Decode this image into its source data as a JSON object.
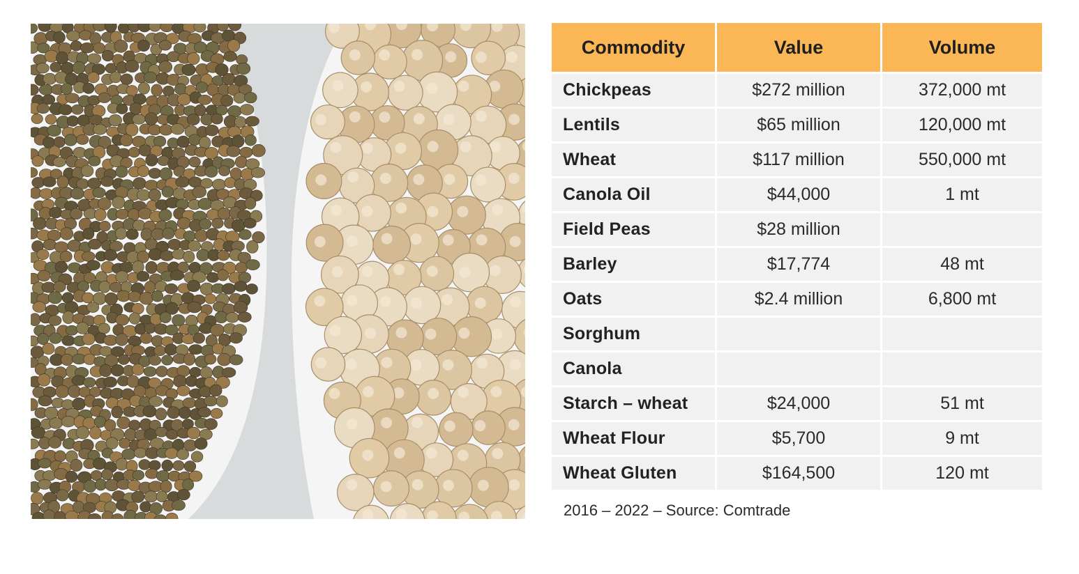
{
  "table": {
    "headers": [
      "Commodity",
      "Value",
      "Volume"
    ],
    "rows": [
      {
        "commodity": "Chickpeas",
        "value": "$272 million",
        "volume": "372,000 mt"
      },
      {
        "commodity": "Lentils",
        "value": "$65 million",
        "volume": "120,000 mt"
      },
      {
        "commodity": "Wheat",
        "value": "$117 million",
        "volume": "550,000 mt"
      },
      {
        "commodity": "Canola Oil",
        "value": "$44,000",
        "volume": "1 mt"
      },
      {
        "commodity": "Field Peas",
        "value": "$28 million",
        "volume": ""
      },
      {
        "commodity": "Barley",
        "value": "$17,774",
        "volume": "48 mt"
      },
      {
        "commodity": "Oats",
        "value": "$2.4 million",
        "volume": "6,800 mt"
      },
      {
        "commodity": "Sorghum",
        "value": "",
        "volume": ""
      },
      {
        "commodity": "Canola",
        "value": "",
        "volume": ""
      },
      {
        "commodity": "Starch – wheat",
        "value": "$24,000",
        "volume": "51 mt"
      },
      {
        "commodity": "Wheat Flour",
        "value": "$5,700",
        "volume": "9 mt"
      },
      {
        "commodity": "Wheat Gluten",
        "value": "$164,500",
        "volume": "120 mt"
      }
    ]
  },
  "footnote": "2016 – 2022 – Source: Comtrade",
  "colors": {
    "header_background": "#fbb756",
    "row_background": "#f1f1f1",
    "lentil_tones": [
      "#6b5a3c",
      "#7a6846",
      "#8a7a52",
      "#5e5336",
      "#9a7a4a",
      "#6f6a45",
      "#856b44"
    ],
    "chickpea_tones": [
      "#e6d5b8",
      "#dcc6a2",
      "#eadcc3",
      "#d3ba93",
      "#e1caa6"
    ]
  },
  "image": {
    "icon": "lentils-and-chickpeas-photo"
  }
}
